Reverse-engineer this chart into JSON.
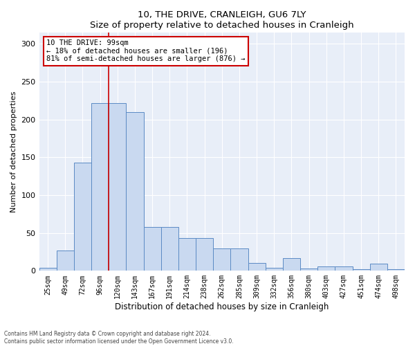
{
  "title": "10, THE DRIVE, CRANLEIGH, GU6 7LY",
  "subtitle": "Size of property relative to detached houses in Cranleigh",
  "xlabel": "Distribution of detached houses by size in Cranleigh",
  "ylabel": "Number of detached properties",
  "footer_line1": "Contains HM Land Registry data © Crown copyright and database right 2024.",
  "footer_line2": "Contains public sector information licensed under the Open Government Licence v3.0.",
  "annotation_line1": "10 THE DRIVE: 99sqm",
  "annotation_line2": "← 18% of detached houses are smaller (196)",
  "annotation_line3": "81% of semi-detached houses are larger (876) →",
  "bar_labels": [
    "25sqm",
    "49sqm",
    "72sqm",
    "96sqm",
    "120sqm",
    "143sqm",
    "167sqm",
    "191sqm",
    "214sqm",
    "238sqm",
    "262sqm",
    "285sqm",
    "309sqm",
    "332sqm",
    "356sqm",
    "380sqm",
    "403sqm",
    "427sqm",
    "451sqm",
    "474sqm",
    "498sqm"
  ],
  "bar_values": [
    4,
    27,
    143,
    222,
    222,
    210,
    58,
    58,
    43,
    43,
    30,
    30,
    10,
    4,
    17,
    3,
    6,
    6,
    2,
    9,
    2
  ],
  "bar_color": "#c9d9f0",
  "bar_edge_color": "#5b8ac4",
  "property_line_x": 3.5,
  "property_line_color": "#cc0000",
  "annotation_box_color": "#cc0000",
  "background_color": "#e8eef8",
  "ylim": [
    0,
    315
  ],
  "yticks": [
    0,
    50,
    100,
    150,
    200,
    250,
    300
  ]
}
